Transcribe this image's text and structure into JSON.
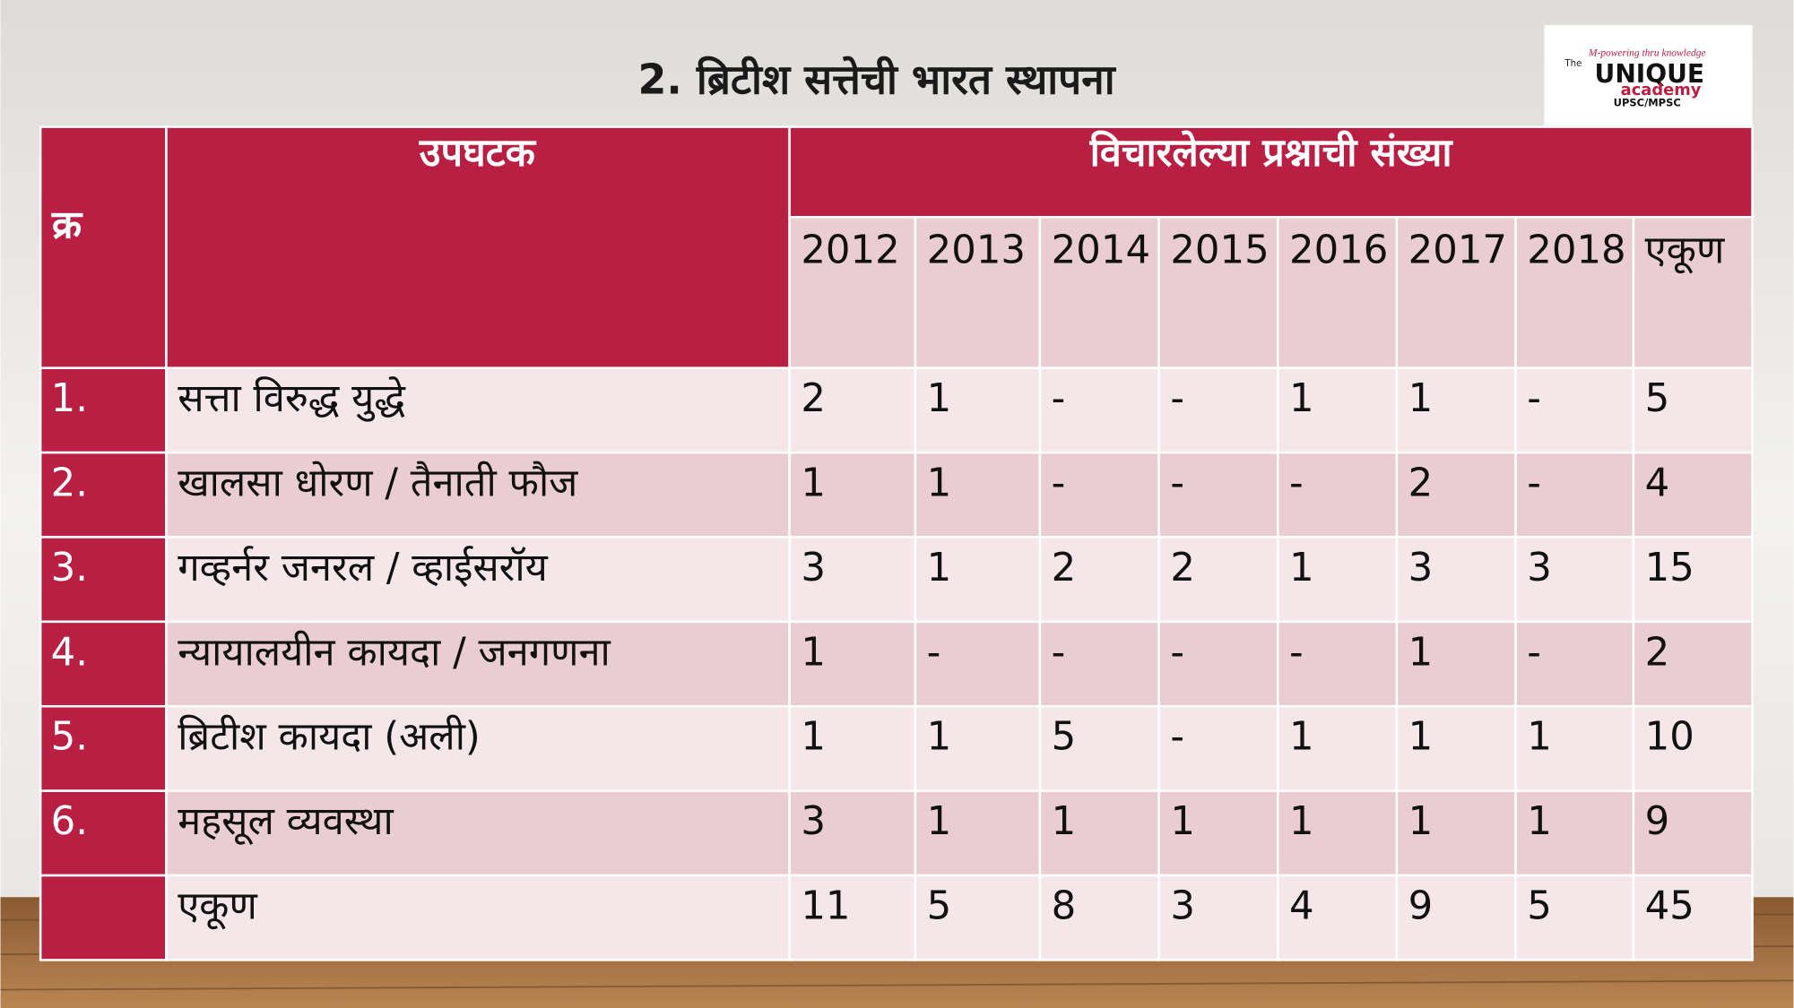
{
  "title": "2. ब्रिटीश सत्तेची भारत स्थापना",
  "logo": {
    "tagline": "M-powering thru knowledge",
    "the": "The",
    "name": "UNIQUE",
    "academy": "academy",
    "exams": "UPSC/MPSC"
  },
  "table": {
    "header": {
      "serial": "क्र",
      "subtopic": "उपघटक",
      "group": "विचारलेल्या प्रश्नाची संख्या",
      "columns": [
        "2012",
        "2013",
        "2014",
        "2015",
        "2016",
        "2017",
        "2018",
        "एकूण"
      ]
    },
    "rows": [
      {
        "serial": "1.",
        "topic": "सत्ता विरुद्ध युद्धे",
        "counts": [
          2,
          1,
          "-",
          "-",
          1,
          1,
          "-",
          5
        ]
      },
      {
        "serial": "2.",
        "topic": "खालसा धोरण / तैनाती फौज",
        "counts": [
          1,
          1,
          "-",
          "-",
          "-",
          2,
          "-",
          4
        ]
      },
      {
        "serial": "3.",
        "topic": "गव्हर्नर जनरल / व्हाईसरॉय",
        "counts": [
          3,
          1,
          2,
          2,
          1,
          3,
          3,
          15
        ]
      },
      {
        "serial": "4.",
        "topic": "न्यायालयीन कायदा / जनगणना",
        "counts": [
          1,
          "-",
          "-",
          "-",
          "-",
          1,
          "-",
          2
        ]
      },
      {
        "serial": "5.",
        "topic": "ब्रिटीश कायदा (अली)",
        "counts": [
          1,
          1,
          5,
          "-",
          1,
          1,
          1,
          10
        ]
      },
      {
        "serial": "6.",
        "topic": "महसूल व्यवस्था",
        "counts": [
          3,
          1,
          1,
          1,
          1,
          1,
          1,
          9
        ]
      },
      {
        "topic": "एकूण",
        "counts": [
          11,
          5,
          8,
          3,
          4,
          9,
          5,
          45
        ]
      }
    ]
  }
}
